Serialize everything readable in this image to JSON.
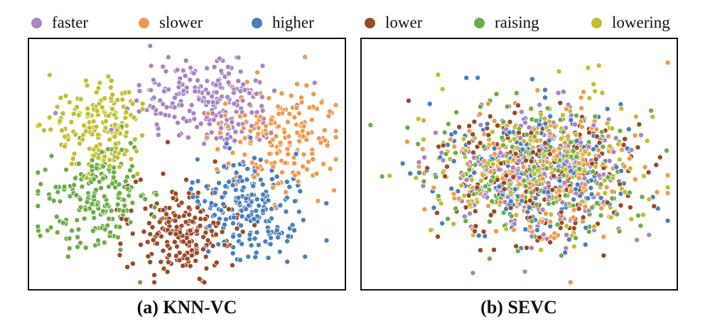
{
  "legend": [
    {
      "label": "faster",
      "color": "#a885c4"
    },
    {
      "label": "slower",
      "color": "#f29a4a"
    },
    {
      "label": "higher",
      "color": "#4a7fbf"
    },
    {
      "label": "lower",
      "color": "#9b4a26"
    },
    {
      "label": "raising",
      "color": "#6bae45"
    },
    {
      "label": "lowering",
      "color": "#c2bf2e"
    }
  ],
  "chart_data": [
    {
      "type": "scatter",
      "title": "(a) KNN-VC",
      "xlabel": "",
      "ylabel": "",
      "axes_ticks": false,
      "description_of_series": "t-SNE style 2D embedding; clusters are well separated by class",
      "series": [
        {
          "name": "faster",
          "color": "#a885c4",
          "center": [
            0.57,
            0.25
          ],
          "spread": [
            0.12,
            0.1
          ],
          "count": 230
        },
        {
          "name": "slower",
          "color": "#f29a4a",
          "center": [
            0.79,
            0.39
          ],
          "spread": [
            0.09,
            0.11
          ],
          "count": 180
        },
        {
          "name": "higher",
          "color": "#4a7fbf",
          "center": [
            0.7,
            0.67
          ],
          "spread": [
            0.08,
            0.1
          ],
          "count": 210
        },
        {
          "name": "lower",
          "color": "#9b4a26",
          "center": [
            0.48,
            0.76
          ],
          "spread": [
            0.08,
            0.09
          ],
          "count": 200
        },
        {
          "name": "raising",
          "color": "#6bae45",
          "center": [
            0.22,
            0.64
          ],
          "spread": [
            0.08,
            0.11
          ],
          "count": 200
        },
        {
          "name": "lowering",
          "color": "#c2bf2e",
          "center": [
            0.23,
            0.36
          ],
          "spread": [
            0.08,
            0.09
          ],
          "count": 180
        }
      ]
    },
    {
      "type": "scatter",
      "title": "(b) SEVC",
      "xlabel": "",
      "ylabel": "",
      "axes_ticks": false,
      "description_of_series": "t-SNE style 2D embedding; all classes overlap in one mixed cloud",
      "series": [
        {
          "name": "faster",
          "color": "#a885c4",
          "center": [
            0.56,
            0.53
          ],
          "spread": [
            0.16,
            0.13
          ],
          "count": 210
        },
        {
          "name": "slower",
          "color": "#f29a4a",
          "center": [
            0.56,
            0.53
          ],
          "spread": [
            0.16,
            0.13
          ],
          "count": 210
        },
        {
          "name": "higher",
          "color": "#4a7fbf",
          "center": [
            0.56,
            0.53
          ],
          "spread": [
            0.16,
            0.13
          ],
          "count": 210
        },
        {
          "name": "lower",
          "color": "#9b4a26",
          "center": [
            0.56,
            0.53
          ],
          "spread": [
            0.16,
            0.13
          ],
          "count": 210
        },
        {
          "name": "raising",
          "color": "#6bae45",
          "center": [
            0.56,
            0.53
          ],
          "spread": [
            0.16,
            0.13
          ],
          "count": 210
        },
        {
          "name": "lowering",
          "color": "#c2bf2e",
          "center": [
            0.56,
            0.53
          ],
          "spread": [
            0.16,
            0.13
          ],
          "count": 210
        }
      ]
    }
  ]
}
